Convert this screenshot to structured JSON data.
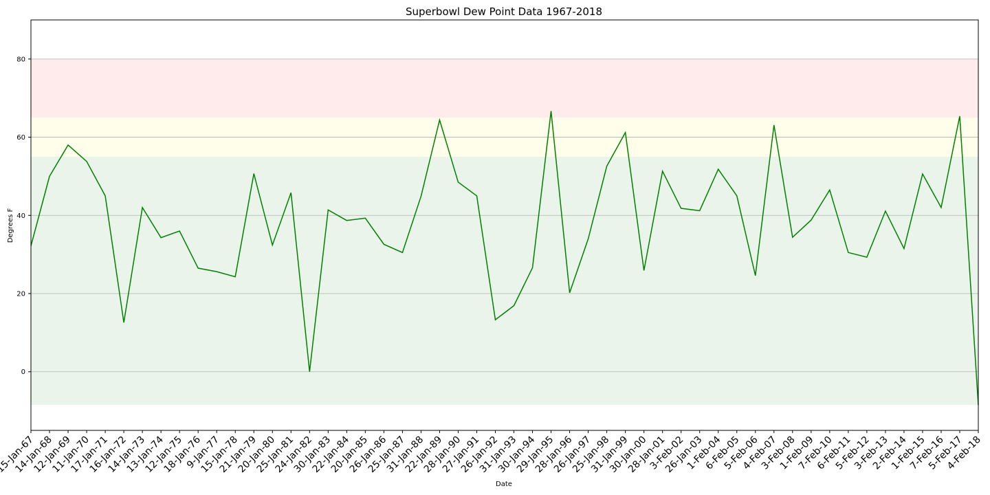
{
  "chart_data": {
    "type": "line",
    "title": "Superbowl Dew Point Data 1967-2018",
    "xlabel": "Date",
    "ylabel": "Degrees F",
    "ylim": [
      -15,
      90
    ],
    "yticks": [
      0,
      20,
      40,
      60,
      80
    ],
    "grid": "y",
    "line_color": "#008000",
    "bands": [
      {
        "from": -8.5,
        "to": 55,
        "color": "#eaf4ea"
      },
      {
        "from": 55,
        "to": 65,
        "color": "#fefeea"
      },
      {
        "from": 65,
        "to": 80,
        "color": "#ffebeb"
      }
    ],
    "categories": [
      "15-Jan-67",
      "14-Jan-68",
      "12-Jan-69",
      "11-Jan-70",
      "17-Jan-71",
      "16-Jan-72",
      "14-Jan-73",
      "13-Jan-74",
      "12-Jan-75",
      "18-Jan-76",
      "9-Jan-77",
      "15-Jan-78",
      "21-Jan-79",
      "20-Jan-80",
      "25-Jan-81",
      "24-Jan-82",
      "30-Jan-83",
      "22-Jan-84",
      "20-Jan-85",
      "26-Jan-86",
      "25-Jan-87",
      "31-Jan-88",
      "22-Jan-89",
      "28-Jan-90",
      "27-Jan-91",
      "26-Jan-92",
      "31-Jan-93",
      "30-Jan-94",
      "29-Jan-95",
      "28-Jan-96",
      "26-Jan-97",
      "25-Jan-98",
      "31-Jan-99",
      "30-Jan-00",
      "28-Jan-01",
      "3-Feb-02",
      "26-Jan-03",
      "1-Feb-04",
      "6-Feb-05",
      "5-Feb-06",
      "4-Feb-07",
      "3-Feb-08",
      "1-Feb-09",
      "7-Feb-10",
      "6-Feb-11",
      "5-Feb-12",
      "3-Feb-13",
      "2-Feb-14",
      "1-Feb-15",
      "7-Feb-16",
      "5-Feb-17",
      "4-Feb-18"
    ],
    "values": [
      32.2,
      50.0,
      58.0,
      53.8,
      45.0,
      12.6,
      42.0,
      34.3,
      36.0,
      26.5,
      25.6,
      24.3,
      50.7,
      32.4,
      45.8,
      0.0,
      41.4,
      38.7,
      39.3,
      32.6,
      30.5,
      44.9,
      64.4,
      48.5,
      45.0,
      13.3,
      16.9,
      26.6,
      66.7,
      20.2,
      34.0,
      52.6,
      61.2,
      25.9,
      51.3,
      41.8,
      41.2,
      51.8,
      45.0,
      24.6,
      63.1,
      34.4,
      38.8,
      46.5,
      30.5,
      29.3,
      41.1,
      31.5,
      50.6,
      42.0,
      65.4,
      -8.5
    ]
  }
}
